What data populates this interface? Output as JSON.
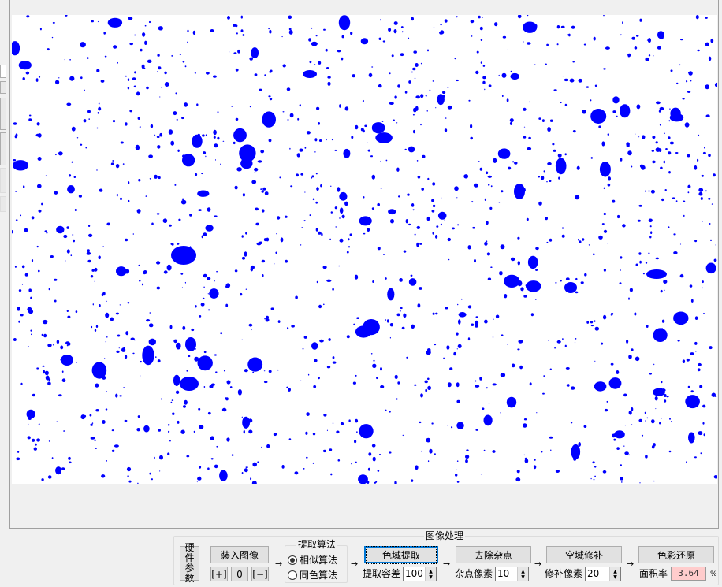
{
  "image": {
    "blob_color": "#0000ff",
    "background": "#ffffff"
  },
  "panel": {
    "title": "图像处理",
    "hardware_button": "硬件参数",
    "load_button": "装入图像",
    "zoom_in": "[+]",
    "zoom_reset": "0",
    "zoom_out": "[−]",
    "algorithm": {
      "title": "提取算法",
      "options": [
        {
          "label": "相似算法",
          "selected": true
        },
        {
          "label": "同色算法",
          "selected": false
        }
      ]
    },
    "extract": {
      "button": "色域提取",
      "label": "提取容差",
      "value": "100"
    },
    "denoise": {
      "button": "去除杂点",
      "label": "杂点像素",
      "value": "10"
    },
    "repair": {
      "button": "空域修补",
      "label": "修补像素",
      "value": "20"
    },
    "restore": {
      "button": "色彩还原",
      "label": "面积率",
      "value": "3.64",
      "unit": "%"
    },
    "arrow": "→"
  }
}
